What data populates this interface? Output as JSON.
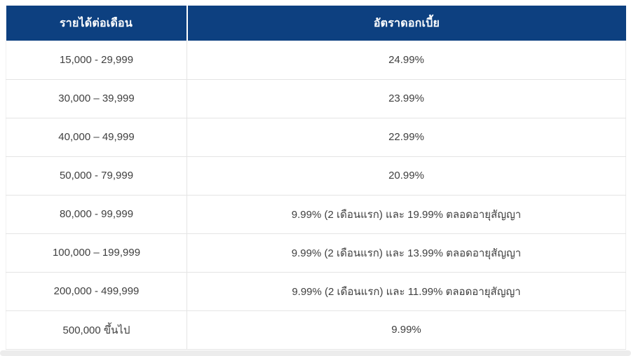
{
  "table": {
    "columns": [
      {
        "label": "รายได้ต่อเดือน"
      },
      {
        "label": "อัตราดอกเบี้ย"
      }
    ],
    "rows": [
      {
        "income": "15,000 - 29,999",
        "rate": "24.99%"
      },
      {
        "income": "30,000 – 39,999",
        "rate": "23.99%"
      },
      {
        "income": "40,000 – 49,999",
        "rate": "22.99%"
      },
      {
        "income": "50,000 - 79,999",
        "rate": "20.99%"
      },
      {
        "income": "80,000 - 99,999",
        "rate": "9.99% (2 เดือนแรก) และ 19.99% ตลอดอายุสัญญา"
      },
      {
        "income": "100,000 – 199,999",
        "rate": "9.99% (2 เดือนแรก) และ 13.99% ตลอดอายุสัญญา"
      },
      {
        "income": "200,000 - 499,999",
        "rate": "9.99% (2 เดือนแรก) และ 11.99% ตลอดอายุสัญญา"
      },
      {
        "income": "500,000 ขึ้นไป",
        "rate": "9.99%"
      }
    ]
  },
  "colors": {
    "header_bg": "#0d4080",
    "header_text": "#ffffff",
    "body_text": "#404040",
    "border": "#e4e4e4",
    "strip": "#ececec"
  }
}
